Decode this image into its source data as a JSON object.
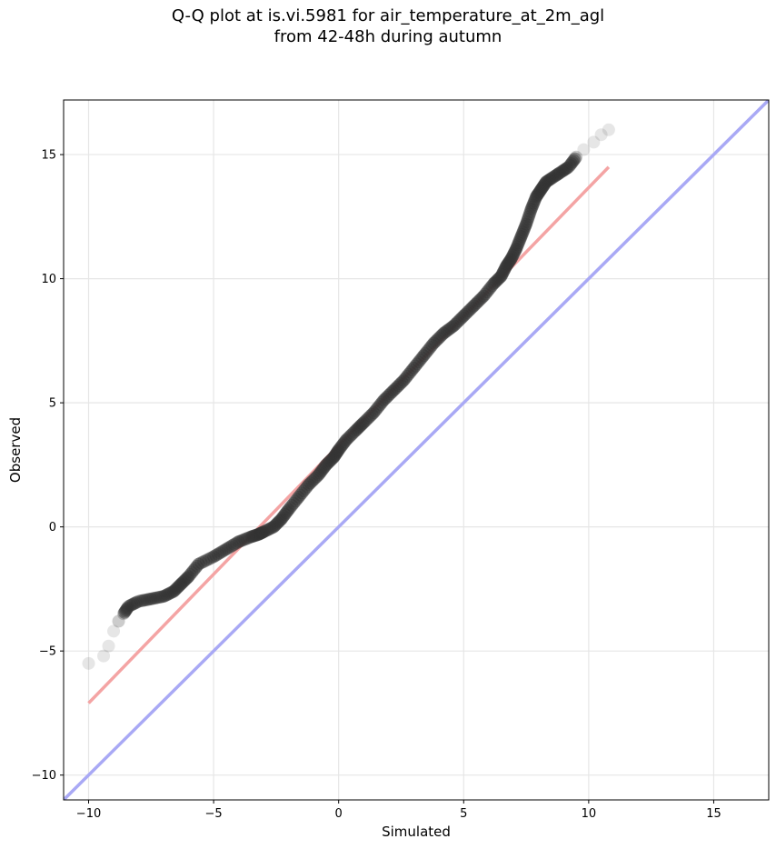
{
  "chart_data": {
    "type": "scatter",
    "title_line1": "Q-Q plot at is.vi.5981 for air_temperature_at_2m_agl",
    "title_line2": "from 42-48h during autumn",
    "xlabel": "Simulated",
    "ylabel": "Observed",
    "xlim": [
      -11,
      17.2
    ],
    "ylim": [
      -11,
      17.2
    ],
    "x_ticks": [
      -10,
      -5,
      0,
      5,
      10,
      15
    ],
    "y_ticks": [
      -10,
      -5,
      0,
      5,
      10,
      15
    ],
    "x_tick_labels": [
      "−10",
      "−5",
      "0",
      "5",
      "10",
      "15"
    ],
    "y_tick_labels": [
      "−10",
      "−5",
      "0",
      "5",
      "10",
      "15"
    ],
    "grid": true,
    "colors": {
      "points": "#333333",
      "fit_line": "#f4a4a4",
      "identity_line": "#a9a9f5"
    },
    "fit_line": {
      "x": [
        -10,
        10.8
      ],
      "y": [
        -7.1,
        14.5
      ]
    },
    "identity_line": {
      "x": [
        -11,
        17.2
      ],
      "y": [
        -11,
        17.2
      ]
    },
    "quantiles": {
      "x": [
        -10.0,
        -9.4,
        -9.2,
        -9.0,
        -8.8,
        -8.6,
        -8.4,
        -8.0,
        -7.5,
        -7.0,
        -6.6,
        -6.3,
        -6.0,
        -5.6,
        -5.0,
        -4.5,
        -4.0,
        -3.5,
        -3.2,
        -3.0,
        -2.6,
        -2.3,
        -2.0,
        -1.6,
        -1.2,
        -0.8,
        -0.5,
        -0.2,
        0.0,
        0.3,
        0.7,
        1.0,
        1.4,
        1.8,
        2.2,
        2.6,
        3.0,
        3.4,
        3.8,
        4.2,
        4.6,
        5.0,
        5.4,
        5.8,
        6.2,
        6.5,
        6.7,
        6.9,
        7.1,
        7.3,
        7.5,
        7.7,
        7.9,
        8.1,
        8.3,
        8.6,
        8.9,
        9.2,
        9.5,
        9.8,
        10.2,
        10.5,
        10.8
      ],
      "y": [
        -5.5,
        -5.2,
        -4.8,
        -4.2,
        -3.8,
        -3.5,
        -3.2,
        -3.0,
        -2.9,
        -2.8,
        -2.6,
        -2.3,
        -2.0,
        -1.5,
        -1.2,
        -0.9,
        -0.6,
        -0.4,
        -0.3,
        -0.2,
        0.0,
        0.3,
        0.7,
        1.2,
        1.7,
        2.1,
        2.5,
        2.8,
        3.1,
        3.5,
        3.9,
        4.2,
        4.6,
        5.1,
        5.5,
        5.9,
        6.4,
        6.9,
        7.4,
        7.8,
        8.1,
        8.5,
        8.9,
        9.3,
        9.8,
        10.1,
        10.5,
        10.8,
        11.2,
        11.7,
        12.2,
        12.8,
        13.3,
        13.6,
        13.9,
        14.1,
        14.3,
        14.5,
        14.9,
        15.2,
        15.5,
        15.8,
        16.0
      ]
    }
  }
}
